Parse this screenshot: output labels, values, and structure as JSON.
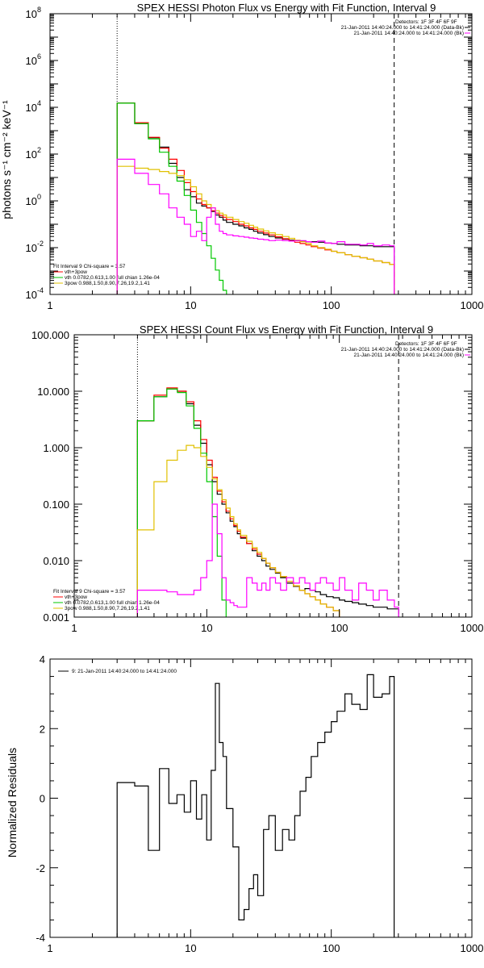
{
  "chart_data": [
    {
      "type": "line",
      "title": "SPEX HESSI Photon Flux vs Energy with Fit Function, Interval 9",
      "ylabel": "photons s⁻¹ cm⁻² keV⁻¹",
      "xlabel": "",
      "xscale": "log",
      "yscale": "log",
      "xlim": [
        1,
        1000
      ],
      "ylim": [
        0.0001,
        100000000
      ],
      "xtick_values": [
        1,
        10,
        100,
        1000
      ],
      "xtick_labels": [
        "1",
        "10",
        "100",
        "1000"
      ],
      "ytick_values": [
        0.0001,
        0.01,
        1,
        100,
        10000,
        1000000,
        100000000
      ],
      "ytick_labels": [
        "10",
        "10",
        "10",
        "10",
        "10",
        "10",
        "10"
      ],
      "ytick_exponents": [
        "-4",
        "-2",
        "0",
        "2",
        "4",
        "6",
        "8"
      ],
      "fit_range_keV": [
        3,
        280
      ],
      "top_legend": [
        {
          "text": "Detectors: 1F 3F 4F 6F 9F",
          "color": "#000000"
        },
        {
          "text": "21-Jan-2011 14:40:24.000 to 14:41:24.000 (Data-Bk)",
          "color": "#000000"
        },
        {
          "text": "21-Jan-2011 14:40:24.000 to 14:41:24.000 (Bk)",
          "color": "#ff00ff"
        }
      ],
      "fit_legend": [
        {
          "text": "Fit Interval 9   Chi-square = 3.57",
          "color": "#000000",
          "line": false
        },
        {
          "text": "vth+3pow",
          "color": "#ff0000",
          "line": true
        },
        {
          "text": "vth 0.0782,0.613,1.00  full chian 1.26e-04",
          "color": "#00c800",
          "line": true
        },
        {
          "text": "3pow 0.988,1.50,8.90,7.26,19.2,1.41",
          "color": "#e0c000",
          "line": true
        }
      ],
      "energy_edges": [
        3,
        4,
        5,
        6,
        7,
        8,
        9,
        10,
        11,
        12,
        13,
        14,
        15,
        16,
        17,
        18,
        20,
        22,
        24,
        26,
        28,
        30,
        33,
        36,
        40,
        45,
        50,
        55,
        60,
        66,
        72,
        80,
        90,
        100,
        110,
        125,
        140,
        160,
        180,
        200,
        230,
        260,
        280
      ],
      "series": [
        {
          "name": "Data-Bk",
          "color": "#000000",
          "values": [
            15000,
            2000,
            500,
            200,
            40,
            10,
            3,
            1.5,
            0.8,
            0.6,
            0.5,
            0.35,
            0.25,
            0.2,
            0.15,
            0.12,
            0.1,
            0.085,
            0.07,
            0.06,
            0.05,
            0.042,
            0.036,
            0.03,
            0.026,
            0.023,
            0.021,
            0.02,
            0.019,
            0.018,
            0.018,
            0.017,
            0.016,
            0.015,
            0.014,
            0.013,
            0.013,
            0.012,
            0.012,
            0.011,
            0.011,
            0.011
          ]
        },
        {
          "name": "vth+3pow",
          "color": "#ff0000",
          "values": [
            15000,
            2200,
            520,
            180,
            60,
            20,
            6,
            2.5,
            1.2,
            0.7,
            0.5,
            0.38,
            0.3,
            0.24,
            0.2,
            0.16,
            0.13,
            0.1,
            0.085,
            0.07,
            0.06,
            0.05,
            0.042,
            0.035,
            0.029,
            0.024,
            0.02,
            0.017,
            0.015,
            0.013,
            0.011,
            0.0095,
            0.008,
            0.007,
            0.006,
            0.005,
            0.0043,
            0.0037,
            0.0032,
            0.0027,
            0.0023,
            0.0019
          ]
        },
        {
          "name": "vth",
          "color": "#00c800",
          "values": [
            15000,
            2000,
            450,
            120,
            30,
            7,
            1.7,
            0.4,
            0.12,
            0.04,
            0.012,
            0.0035,
            0.0011,
            0.0004,
            0.00015,
            6e-05
          ]
        },
        {
          "name": "3pow",
          "color": "#e0c000",
          "values": [
            30,
            25,
            22,
            18,
            15,
            12,
            8,
            4,
            2,
            1,
            0.7,
            0.5,
            0.38,
            0.3,
            0.25,
            0.2,
            0.16,
            0.13,
            0.11,
            0.09,
            0.075,
            0.062,
            0.052,
            0.043,
            0.036,
            0.03,
            0.025,
            0.021,
            0.018,
            0.015,
            0.012,
            0.01,
            0.0085,
            0.007,
            0.006,
            0.005,
            0.0043,
            0.0037,
            0.0032,
            0.0027,
            0.0023,
            0.0019
          ]
        },
        {
          "name": "Bk",
          "color": "#ff00ff",
          "values": [
            60,
            15,
            5,
            2,
            0.5,
            0.2,
            0.1,
            0.03,
            0.05,
            0.02,
            0.2,
            0.5,
            0.1,
            0.05,
            0.04,
            0.035,
            0.032,
            0.03,
            0.028,
            0.026,
            0.025,
            0.023,
            0.022,
            0.02,
            0.021,
            0.02,
            0.019,
            0.02,
            0.02,
            0.018,
            0.017,
            0.019,
            0.016,
            0.015,
            0.018,
            0.014,
            0.014,
            0.013,
            0.015,
            0.012,
            0.013,
            0.012
          ]
        }
      ]
    },
    {
      "type": "line",
      "title": "SPEX HESSI Count Flux vs Energy with Fit Function, Interval 9",
      "ylabel": "",
      "xlabel": "",
      "xscale": "log",
      "yscale": "log",
      "xlim": [
        1,
        1000
      ],
      "ylim": [
        0.001,
        100
      ],
      "xtick_values": [
        1,
        10,
        100,
        1000
      ],
      "xtick_labels": [
        "1",
        "10",
        "100",
        "1000"
      ],
      "ytick_values": [
        0.001,
        0.01,
        0.1,
        1,
        10,
        100
      ],
      "ytick_labels": [
        "0.001",
        "0.010",
        "0.100",
        "1.000",
        "10.000",
        "100.000"
      ],
      "fit_range_keV": [
        3,
        280
      ],
      "top_legend": [
        {
          "text": "Detectors: 1F 3F 4F 6F 9F",
          "color": "#000000"
        },
        {
          "text": "21-Jan-2011 14:40:24.000 to 14:41:24.000 (Data-Bk)",
          "color": "#000000"
        },
        {
          "text": "21-Jan-2011 14:40:24.000 to 14:41:24.000 (Bk)",
          "color": "#ff00ff"
        }
      ],
      "fit_legend": [
        {
          "text": "Fit Interval 9   Chi-square = 3.57",
          "color": "#000000",
          "line": false
        },
        {
          "text": "vth+3pow",
          "color": "#ff0000",
          "line": true
        },
        {
          "text": "vth 0.0782,0.613,1.00  full chian 1.26e-04",
          "color": "#00c800",
          "line": true
        },
        {
          "text": "3pow 0.988,1.50,8.90,7.26,19.2,1.41",
          "color": "#e0c000",
          "line": true
        }
      ],
      "energy_edges": [
        3,
        4,
        5,
        6,
        7,
        8,
        9,
        10,
        11,
        12,
        13,
        14,
        15,
        16,
        17,
        18,
        20,
        22,
        24,
        26,
        28,
        30,
        33,
        36,
        40,
        45,
        50,
        55,
        60,
        66,
        72,
        80,
        90,
        100,
        110,
        125,
        140,
        160,
        180,
        200,
        230,
        260,
        280
      ],
      "series": [
        {
          "name": "Data-Bk",
          "color": "#000000",
          "values": [
            3,
            8,
            11,
            10,
            6,
            2.5,
            1.2,
            0.5,
            0.25,
            0.15,
            0.1,
            0.07,
            0.05,
            0.04,
            0.03,
            0.025,
            0.02,
            0.015,
            0.012,
            0.01,
            0.008,
            0.007,
            0.006,
            0.005,
            0.004,
            0.0035,
            0.003,
            0.0032,
            0.003,
            0.0028,
            0.0025,
            0.0023,
            0.0022,
            0.002,
            0.0019,
            0.0018,
            0.0017,
            0.0016,
            0.0015,
            0.0015,
            0.0014,
            0.0014
          ]
        },
        {
          "name": "vth+3pow",
          "color": "#ff0000",
          "values": [
            3,
            8.5,
            11.5,
            10,
            6.5,
            3,
            1.4,
            0.6,
            0.3,
            0.17,
            0.11,
            0.075,
            0.055,
            0.042,
            0.033,
            0.026,
            0.02,
            0.016,
            0.013,
            0.011,
            0.009,
            0.0075,
            0.0062,
            0.0052,
            0.0043,
            0.0036,
            0.003,
            0.0026,
            0.0023,
            0.002,
            0.0017,
            0.0015,
            0.0013
          ]
        },
        {
          "name": "vth",
          "color": "#00c800",
          "values": [
            3,
            8,
            11,
            9.5,
            5.5,
            2.2,
            0.8,
            0.25,
            0.06,
            0.012,
            0.002
          ]
        },
        {
          "name": "3pow",
          "color": "#e0c000",
          "values": [
            0.035,
            0.25,
            0.6,
            0.9,
            1.1,
            1.0,
            0.7,
            0.45,
            0.28,
            0.18,
            0.12,
            0.085,
            0.06,
            0.045,
            0.035,
            0.028,
            0.022,
            0.017,
            0.014,
            0.011,
            0.009,
            0.0075,
            0.0062,
            0.0052,
            0.0043,
            0.0036,
            0.003,
            0.0026,
            0.0023,
            0.002,
            0.0017,
            0.0015,
            0.0013
          ]
        },
        {
          "name": "Bk",
          "color": "#ff00ff",
          "values": [
            0.003,
            0.003,
            0.0028,
            0.0025,
            0.0025,
            0.003,
            0.005,
            0.01,
            0.1,
            0.03,
            0.005,
            0.002,
            0.0018,
            0.0016,
            0.0015,
            0.0015,
            0.005,
            0.004,
            0.003,
            0.004,
            0.003,
            0.005,
            0.004,
            0.003,
            0.005,
            0.004,
            0.005,
            0.004,
            0.003,
            0.004,
            0.005,
            0.004,
            0.003,
            0.005,
            0.003,
            0.002,
            0.004,
            0.003,
            0.002,
            0.003,
            0.002,
            0.0015
          ]
        }
      ]
    },
    {
      "type": "line",
      "title": "",
      "ylabel": "Normalized Residuals",
      "xlabel": "",
      "xscale": "log",
      "yscale": "linear",
      "xlim": [
        1,
        1000
      ],
      "ylim": [
        -4,
        4
      ],
      "xtick_values": [
        1,
        10,
        100,
        1000
      ],
      "xtick_labels": [
        "1",
        "10",
        "100",
        "1000"
      ],
      "ytick_values": [
        -4,
        -2,
        0,
        2,
        4
      ],
      "ytick_labels": [
        "-4",
        "-2",
        "0",
        "2",
        "4"
      ],
      "top_legend": [
        {
          "text": "9: 21-Jan-2011 14:40:24.000 to 14:41:24.000",
          "color": "#000000",
          "line": true
        }
      ],
      "energy_edges": [
        3,
        4,
        5,
        6,
        7,
        8,
        9,
        10,
        11,
        12,
        13,
        14,
        15,
        16,
        17,
        18,
        20,
        22,
        24,
        26,
        28,
        30,
        33,
        36,
        40,
        45,
        50,
        55,
        60,
        66,
        72,
        80,
        90,
        100,
        110,
        125,
        140,
        160,
        180,
        200,
        230,
        260,
        280
      ],
      "series": [
        {
          "name": "",
          "color": "#000000",
          "values": [
            0.45,
            0.35,
            -1.5,
            0.85,
            -0.15,
            0.1,
            -0.4,
            0.5,
            -0.6,
            0.1,
            -1.2,
            0.8,
            3.3,
            1.6,
            1.2,
            -0.3,
            -1.4,
            -3.5,
            -3.2,
            -2.6,
            -2.2,
            -2.8,
            -0.9,
            -0.5,
            -1.5,
            -0.9,
            -1.2,
            -0.5,
            0.2,
            0.6,
            1.2,
            1.6,
            1.9,
            2.2,
            2.5,
            3.0,
            2.7,
            2.55,
            3.55,
            2.9,
            3.0,
            3.5
          ]
        }
      ]
    }
  ]
}
